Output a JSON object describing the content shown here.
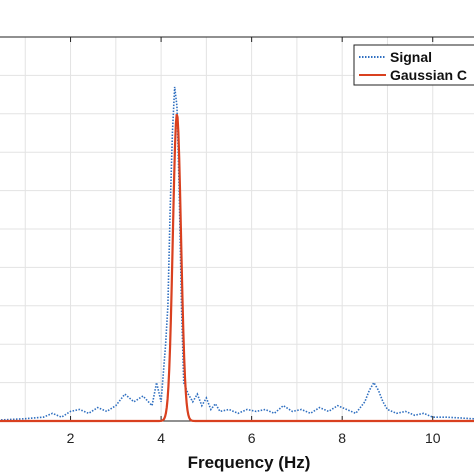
{
  "chart_data": {
    "type": "line",
    "title": "",
    "xlabel": "Frequency (Hz)",
    "ylabel": "",
    "xlim": [
      0,
      11
    ],
    "ylim": [
      0,
      1
    ],
    "xticks": [
      2,
      4,
      6,
      8,
      10
    ],
    "grid": true,
    "legend": {
      "position": "top-right",
      "entries": [
        "Signal",
        "Gaussian C"
      ]
    },
    "series": [
      {
        "name": "Signal",
        "color": "#2f6fc0",
        "style": "dotted",
        "x": [
          0,
          0.5,
          1.0,
          1.4,
          1.6,
          1.8,
          2.0,
          2.2,
          2.4,
          2.6,
          2.8,
          3.0,
          3.2,
          3.4,
          3.6,
          3.8,
          3.9,
          4.0,
          4.1,
          4.15,
          4.2,
          4.25,
          4.3,
          4.35,
          4.4,
          4.45,
          4.5,
          4.6,
          4.7,
          4.8,
          4.9,
          5.0,
          5.1,
          5.2,
          5.3,
          5.5,
          5.7,
          5.9,
          6.1,
          6.3,
          6.5,
          6.7,
          6.9,
          7.1,
          7.3,
          7.5,
          7.7,
          7.9,
          8.1,
          8.3,
          8.5,
          8.6,
          8.7,
          8.8,
          8.9,
          9.0,
          9.2,
          9.4,
          9.6,
          9.8,
          10.0,
          10.3,
          10.6,
          11.0
        ],
        "y": [
          0.002,
          0.003,
          0.006,
          0.01,
          0.02,
          0.01,
          0.025,
          0.03,
          0.02,
          0.035,
          0.025,
          0.04,
          0.07,
          0.05,
          0.065,
          0.04,
          0.1,
          0.05,
          0.2,
          0.3,
          0.55,
          0.75,
          0.87,
          0.82,
          0.6,
          0.3,
          0.1,
          0.07,
          0.05,
          0.07,
          0.04,
          0.06,
          0.03,
          0.045,
          0.025,
          0.03,
          0.02,
          0.03,
          0.025,
          0.03,
          0.02,
          0.04,
          0.025,
          0.03,
          0.02,
          0.035,
          0.025,
          0.04,
          0.03,
          0.02,
          0.05,
          0.08,
          0.1,
          0.08,
          0.05,
          0.03,
          0.02,
          0.025,
          0.015,
          0.02,
          0.01,
          0.01,
          0.008,
          0.005
        ]
      },
      {
        "name": "Gaussian C",
        "color": "#d9401f",
        "style": "solid",
        "gaussian": {
          "amplitude": 0.8,
          "center": 4.35,
          "sigma": 0.09
        }
      }
    ]
  }
}
